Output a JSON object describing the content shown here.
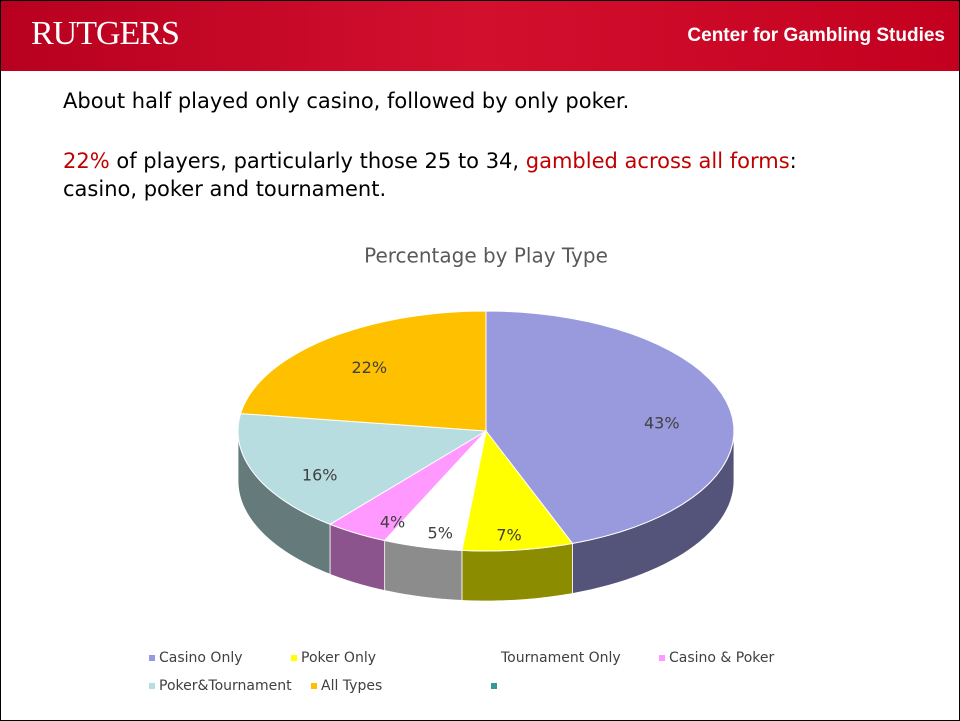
{
  "header": {
    "logo": "RUTGERS",
    "center": "Center for Gambling Studies"
  },
  "text": {
    "line1": "About half played only casino, followed by only poker.",
    "line2": [
      "22%",
      " of players, particularly those 25 to 34, ",
      "gambled across all forms",
      ": casino, poker and tournament."
    ]
  },
  "chart_data": {
    "type": "pie",
    "title": "Percentage by Play Type",
    "categories": [
      "Casino Only",
      "Poker Only",
      "Tournament Only",
      "Casino & Poker",
      "Poker&Tournament",
      "All Types",
      null
    ],
    "values": [
      43,
      7,
      5,
      4,
      16,
      22,
      0
    ],
    "value_labels": [
      "43%",
      "7%",
      "5%",
      "4%",
      "16%",
      "22%",
      null
    ],
    "colors": [
      "#9999dd",
      "#ffff00",
      "#ffffff",
      "#ff99ff",
      "#b8dde0",
      "#ffc000",
      "#339999"
    ],
    "legend": "bottom"
  }
}
